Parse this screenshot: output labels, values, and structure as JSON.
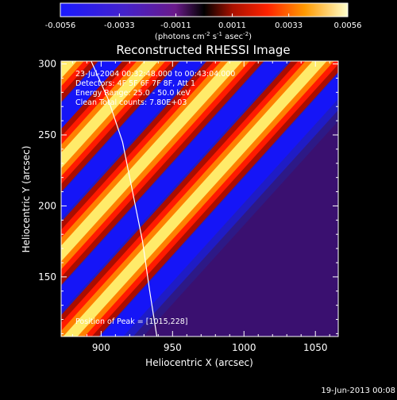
{
  "colorbar": {
    "ticks": [
      "-0.0056",
      "-0.0033",
      "-0.0011",
      "0.0011",
      "0.0033",
      "0.0056"
    ],
    "unit_label": "(photons cm",
    "unit_exp1": "-2",
    "unit_mid": " s",
    "unit_exp2": "-1",
    "unit_mid2": " asec",
    "unit_exp3": "-2",
    "unit_end": ")"
  },
  "annotations": {
    "line1": "23-Jul-2004 00:32:48.000 to 00:43:04.000",
    "line2": "Detectors: 4F 5F 6F 7F 8F, Att 1",
    "line3": "Energy Range: 25.0 - 50.0 keV",
    "line4": "Clean    Total counts: 7.80E+03",
    "peak": "Position of Peak = [1015,228]"
  },
  "footer": {
    "timestamp": "19-Jun-2013 00:08"
  },
  "chart_data": {
    "type": "heatmap",
    "title": "Reconstructed RHESSI Image",
    "xlabel": "Heliocentric X (arcsec)",
    "ylabel": "Heliocentric Y (arcsec)",
    "xlim": [
      872,
      1066
    ],
    "ylim": [
      108,
      302
    ],
    "xticks": [
      900,
      950,
      1000,
      1050
    ],
    "yticks": [
      150,
      200,
      250,
      300
    ],
    "color_range": [
      -0.0056,
      0.0056
    ],
    "limb_curve": [
      [
        893,
        302
      ],
      [
        905,
        275
      ],
      [
        915,
        245
      ],
      [
        922,
        210
      ],
      [
        929,
        175
      ],
      [
        934,
        140
      ],
      [
        939,
        108
      ]
    ],
    "stripe_centers_x_at_top": [
      878,
      935,
      994,
      1053
    ],
    "peak_position": [
      1015,
      228
    ]
  }
}
